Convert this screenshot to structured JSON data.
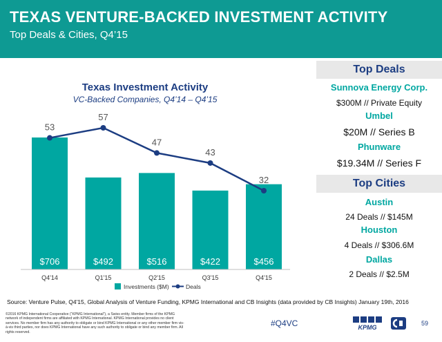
{
  "header": {
    "title": "TEXAS VENTURE-BACKED INVESTMENT ACTIVITY",
    "subtitle": "Top Deals & Cities, Q4’15"
  },
  "chart_data": {
    "type": "bar",
    "title": "Texas Investment Activity",
    "subtitle": "VC-Backed Companies, Q4’14 – Q4’15",
    "categories": [
      "Q4'14",
      "Q1'15",
      "Q2'15",
      "Q3'15",
      "Q4'15"
    ],
    "series": [
      {
        "name": "Investments ($M)",
        "type": "bar",
        "values": [
          706,
          492,
          516,
          422,
          456
        ],
        "labels": [
          "$706",
          "$492",
          "$516",
          "$422",
          "$456"
        ],
        "color": "#00a7a1"
      },
      {
        "name": "Deals",
        "type": "line",
        "values": [
          53,
          57,
          47,
          43,
          32
        ],
        "color": "#1c3d82"
      }
    ],
    "legend": "bottom",
    "grid": false
  },
  "top_deals": {
    "heading": "Top Deals",
    "items": [
      {
        "name": "Sunnova Energy Corp.",
        "detail": "$300M // Private Equity"
      },
      {
        "name": "Umbel",
        "detail": "$20M // Series B"
      },
      {
        "name": "Phunware",
        "detail": "$19.34M // Series F"
      }
    ]
  },
  "top_cities": {
    "heading": "Top Cities",
    "items": [
      {
        "name": "Austin",
        "detail": "24 Deals // $145M"
      },
      {
        "name": "Houston",
        "detail": "4 Deals // $306.6M"
      },
      {
        "name": "Dallas",
        "detail": "2 Deals // $2.5M"
      }
    ]
  },
  "footer": {
    "source": "Source: Venture Pulse, Q4'15, Global Analysis of Venture Funding, KPMG International and CB Insights (data provided by CB Insights) January 19th, 2016",
    "copyright": "©2016 KPMG International Cooperative (“KPMG International”), a Swiss entity. Member firms of the KPMG network of independent firms are affiliated with KPMG International. KPMG International provides no client services. No member firm has any authority to obligate or bind KPMG International or any other member firm vis-à-vis third parties, nor does KPMG International have any such authority to obligate or bind any member firm. All rights reserved.",
    "hashtag": "#Q4VC",
    "logo_text": "KPMG",
    "page_number": "59"
  },
  "colors": {
    "header_bg": "#0e9a93",
    "bar": "#00a7a1",
    "line": "#1c3d82",
    "heading_text": "#1c3d82",
    "name_text": "#00a7a1"
  }
}
